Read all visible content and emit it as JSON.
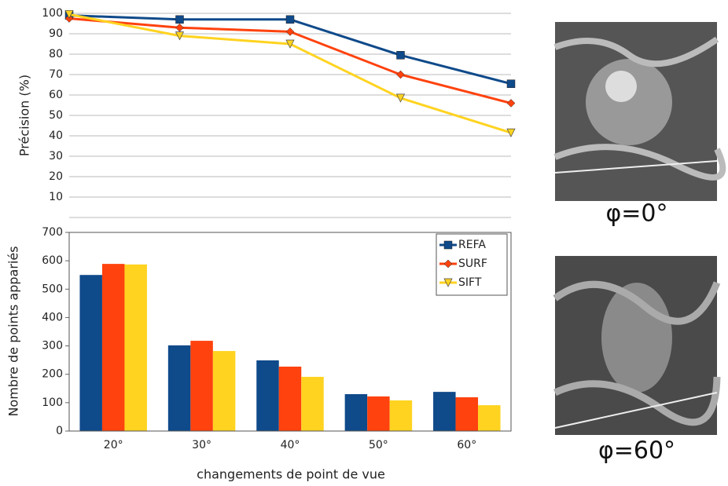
{
  "chart_data": [
    {
      "type": "line",
      "y_label": "Précision (%)",
      "categories": [
        null,
        null,
        null,
        null,
        null
      ],
      "series": [
        {
          "color": "#0f4a8a",
          "marker": "square",
          "values": [
            99,
            97,
            97,
            79.5,
            65.5
          ]
        },
        {
          "color": "#ff420e",
          "marker": "diamond",
          "values": [
            97.5,
            93,
            91,
            70,
            56
          ]
        },
        {
          "color": "#ffd320",
          "marker": "triangle",
          "values": [
            99.5,
            89,
            85,
            58.5,
            41.5
          ]
        }
      ],
      "ylim": [
        0,
        100
      ],
      "yticks": [
        10,
        20,
        30,
        40,
        50,
        60,
        70,
        80,
        90,
        100
      ],
      "grid": true
    },
    {
      "type": "bar",
      "y_label": "Nombre de points appariés",
      "x_label": "changements de point de vue",
      "categories": [
        "20°",
        "30°",
        "40°",
        "50°",
        "60°"
      ],
      "series": [
        {
          "name": "REFA",
          "color": "#0f4a8a",
          "values": [
            550,
            302,
            249,
            130,
            138
          ]
        },
        {
          "name": "SURF",
          "color": "#ff420e",
          "values": [
            589,
            318,
            227,
            122,
            119
          ]
        },
        {
          "name": "SIFT",
          "color": "#ffd320",
          "values": [
            587,
            282,
            191,
            108,
            91
          ]
        }
      ],
      "ylim": [
        0,
        700
      ],
      "yticks": [
        0,
        100,
        200,
        300,
        400,
        500,
        600,
        700
      ],
      "legend": "top-right"
    }
  ],
  "images": [
    {
      "caption": "φ=0°"
    },
    {
      "caption": "φ=60°"
    }
  ]
}
